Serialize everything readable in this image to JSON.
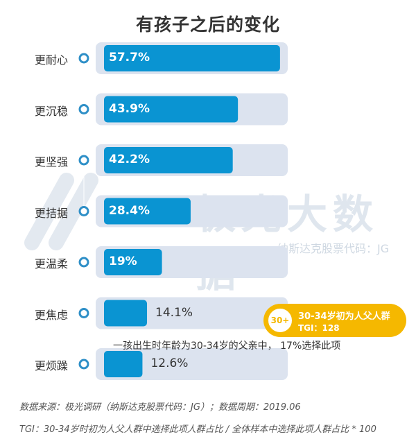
{
  "title": "有孩子之后的变化",
  "watermark": {
    "brand": "极光大数据",
    "sub": "纳斯达克股票代码：JG"
  },
  "colors": {
    "bar": "#0a94d2",
    "track": "#dce3ef",
    "marker": "#2e8fc7",
    "badge": "#f5b800"
  },
  "chart_data": {
    "type": "bar",
    "orientation": "horizontal",
    "title": "有孩子之后的变化",
    "categories": [
      "更耐心",
      "更沉稳",
      "更坚强",
      "更拮据",
      "更温柔",
      "更焦虑",
      "更烦躁"
    ],
    "values": [
      57.7,
      43.9,
      42.2,
      28.4,
      19,
      14.1,
      12.6
    ],
    "value_labels": [
      "57.7%",
      "43.9%",
      "42.2%",
      "28.4%",
      "19%",
      "14.1%",
      "12.6%"
    ],
    "xlim": [
      0,
      100
    ],
    "annotation": "一孩出生时年龄为30-34岁的父亲中，  17%选择此项",
    "badge": {
      "label": "30+",
      "title": "30-34岁初为人父人群",
      "tgi": "TGI：128"
    }
  },
  "footer": {
    "source": "数据来源：极光调研（纳斯达克股票代码：JG）；数据周期：2019.06",
    "note": "TGI：30-34岁时初为人父人群中选择此项人群占比 / 全体样本中选择此项人群占比 * 100"
  }
}
